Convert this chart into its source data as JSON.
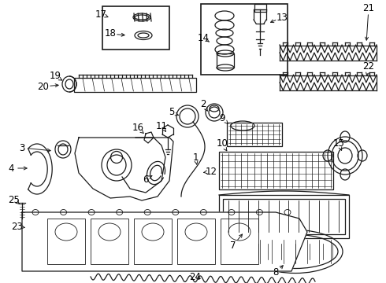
{
  "bg_color": "#ffffff",
  "fig_width": 4.9,
  "fig_height": 3.6,
  "dpi": 100,
  "line_color": "#1a1a1a",
  "text_color": "#000000",
  "label_fontsize": 8.5,
  "line_width": 0.9
}
